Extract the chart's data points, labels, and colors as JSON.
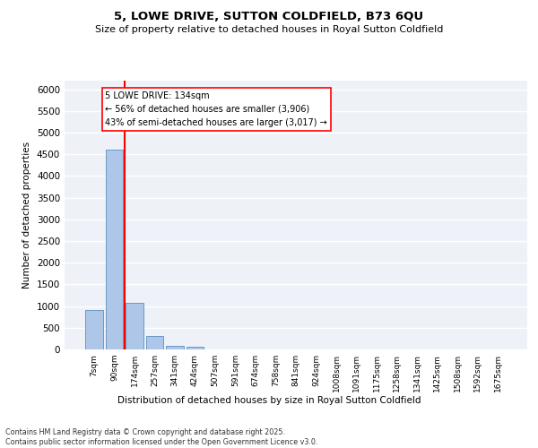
{
  "title": "5, LOWE DRIVE, SUTTON COLDFIELD, B73 6QU",
  "subtitle": "Size of property relative to detached houses in Royal Sutton Coldfield",
  "xlabel": "Distribution of detached houses by size in Royal Sutton Coldfield",
  "ylabel": "Number of detached properties",
  "bar_color": "#aec6e8",
  "bar_edge_color": "#5a8fc0",
  "background_color": "#eef2f8",
  "grid_color": "#ffffff",
  "categories": [
    "7sqm",
    "90sqm",
    "174sqm",
    "257sqm",
    "341sqm",
    "424sqm",
    "507sqm",
    "591sqm",
    "674sqm",
    "758sqm",
    "841sqm",
    "924sqm",
    "1008sqm",
    "1091sqm",
    "1175sqm",
    "1258sqm",
    "1341sqm",
    "1425sqm",
    "1508sqm",
    "1592sqm",
    "1675sqm"
  ],
  "values": [
    900,
    4600,
    1075,
    300,
    75,
    60,
    0,
    0,
    0,
    0,
    0,
    0,
    0,
    0,
    0,
    0,
    0,
    0,
    0,
    0,
    0
  ],
  "property_line_x": 1.5,
  "annotation_text": "5 LOWE DRIVE: 134sqm\n← 56% of detached houses are smaller (3,906)\n43% of semi-detached houses are larger (3,017) →",
  "ylim": [
    0,
    6200
  ],
  "yticks": [
    0,
    500,
    1000,
    1500,
    2000,
    2500,
    3000,
    3500,
    4000,
    4500,
    5000,
    5500,
    6000
  ],
  "footer_line1": "Contains HM Land Registry data © Crown copyright and database right 2025.",
  "footer_line2": "Contains public sector information licensed under the Open Government Licence v3.0."
}
